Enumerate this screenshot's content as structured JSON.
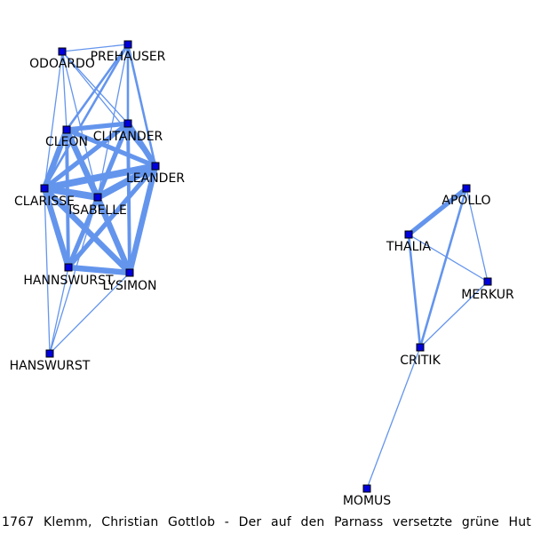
{
  "caption": "1767 Klemm, Christian Gottlob - Der auf den Parnass versetzte grüne Hut",
  "colors": {
    "edge": "#6495ed",
    "node": "#0000dd"
  },
  "nodes": [
    {
      "id": "ODOARDO",
      "label": "ODOARDO"
    },
    {
      "id": "PREHAUSER",
      "label": "PREHAUSER"
    },
    {
      "id": "CLEON",
      "label": "CLEON"
    },
    {
      "id": "CLITANDER",
      "label": "CLITANDER"
    },
    {
      "id": "LEANDER",
      "label": "LEANDER"
    },
    {
      "id": "CLARISSE",
      "label": "CLARISSE"
    },
    {
      "id": "ISABELLE",
      "label": "ISABELLE"
    },
    {
      "id": "HANNSWURST",
      "label": "HANNSWURST"
    },
    {
      "id": "LYSIMON",
      "label": "LYSIMON"
    },
    {
      "id": "HANSWURST",
      "label": "HANSWURST"
    },
    {
      "id": "APOLLO",
      "label": "APOLLO"
    },
    {
      "id": "THALIA",
      "label": "THALIA"
    },
    {
      "id": "MERKUR",
      "label": "MERKUR"
    },
    {
      "id": "CRITIK",
      "label": "CRITIK"
    },
    {
      "id": "MOMUS",
      "label": "MOMUS"
    }
  ],
  "edges": [
    {
      "source": "ODOARDO",
      "target": "PREHAUSER",
      "weight": 1
    },
    {
      "source": "ODOARDO",
      "target": "CLEON",
      "weight": 1
    },
    {
      "source": "ODOARDO",
      "target": "CLITANDER",
      "weight": 1
    },
    {
      "source": "ODOARDO",
      "target": "LEANDER",
      "weight": 1
    },
    {
      "source": "ODOARDO",
      "target": "CLARISSE",
      "weight": 1
    },
    {
      "source": "ODOARDO",
      "target": "ISABELLE",
      "weight": 1
    },
    {
      "source": "PREHAUSER",
      "target": "CLEON",
      "weight": 2
    },
    {
      "source": "PREHAUSER",
      "target": "CLITANDER",
      "weight": 2
    },
    {
      "source": "PREHAUSER",
      "target": "LEANDER",
      "weight": 2
    },
    {
      "source": "PREHAUSER",
      "target": "CLARISSE",
      "weight": 2
    },
    {
      "source": "PREHAUSER",
      "target": "ISABELLE",
      "weight": 1
    },
    {
      "source": "CLEON",
      "target": "CLITANDER",
      "weight": 4
    },
    {
      "source": "CLEON",
      "target": "LEANDER",
      "weight": 4
    },
    {
      "source": "CLEON",
      "target": "CLARISSE",
      "weight": 5
    },
    {
      "source": "CLEON",
      "target": "ISABELLE",
      "weight": 5
    },
    {
      "source": "CLEON",
      "target": "HANNSWURST",
      "weight": 3
    },
    {
      "source": "CLEON",
      "target": "LYSIMON",
      "weight": 4
    },
    {
      "source": "CLITANDER",
      "target": "LEANDER",
      "weight": 5
    },
    {
      "source": "CLITANDER",
      "target": "CLARISSE",
      "weight": 4
    },
    {
      "source": "CLITANDER",
      "target": "ISABELLE",
      "weight": 4
    },
    {
      "source": "CLITANDER",
      "target": "HANNSWURST",
      "weight": 3
    },
    {
      "source": "CLITANDER",
      "target": "LYSIMON",
      "weight": 3
    },
    {
      "source": "LEANDER",
      "target": "CLARISSE",
      "weight": 6
    },
    {
      "source": "LEANDER",
      "target": "ISABELLE",
      "weight": 6
    },
    {
      "source": "LEANDER",
      "target": "HANNSWURST",
      "weight": 4
    },
    {
      "source": "LEANDER",
      "target": "LYSIMON",
      "weight": 5
    },
    {
      "source": "CLARISSE",
      "target": "ISABELLE",
      "weight": 6
    },
    {
      "source": "CLARISSE",
      "target": "HANNSWURST",
      "weight": 5
    },
    {
      "source": "CLARISSE",
      "target": "LYSIMON",
      "weight": 5
    },
    {
      "source": "CLARISSE",
      "target": "HANSWURST",
      "weight": 1
    },
    {
      "source": "ISABELLE",
      "target": "HANNSWURST",
      "weight": 4
    },
    {
      "source": "ISABELLE",
      "target": "LYSIMON",
      "weight": 5
    },
    {
      "source": "ISABELLE",
      "target": "HANSWURST",
      "weight": 1
    },
    {
      "source": "HANNSWURST",
      "target": "LYSIMON",
      "weight": 5
    },
    {
      "source": "HANNSWURST",
      "target": "HANSWURST",
      "weight": 1
    },
    {
      "source": "LYSIMON",
      "target": "HANSWURST",
      "weight": 1
    },
    {
      "source": "APOLLO",
      "target": "THALIA",
      "weight": 4
    },
    {
      "source": "APOLLO",
      "target": "MERKUR",
      "weight": 1
    },
    {
      "source": "APOLLO",
      "target": "CRITIK",
      "weight": 2
    },
    {
      "source": "THALIA",
      "target": "MERKUR",
      "weight": 1
    },
    {
      "source": "THALIA",
      "target": "CRITIK",
      "weight": 2
    },
    {
      "source": "MERKUR",
      "target": "CRITIK",
      "weight": 1
    },
    {
      "source": "CRITIK",
      "target": "MOMUS",
      "weight": 1
    }
  ]
}
